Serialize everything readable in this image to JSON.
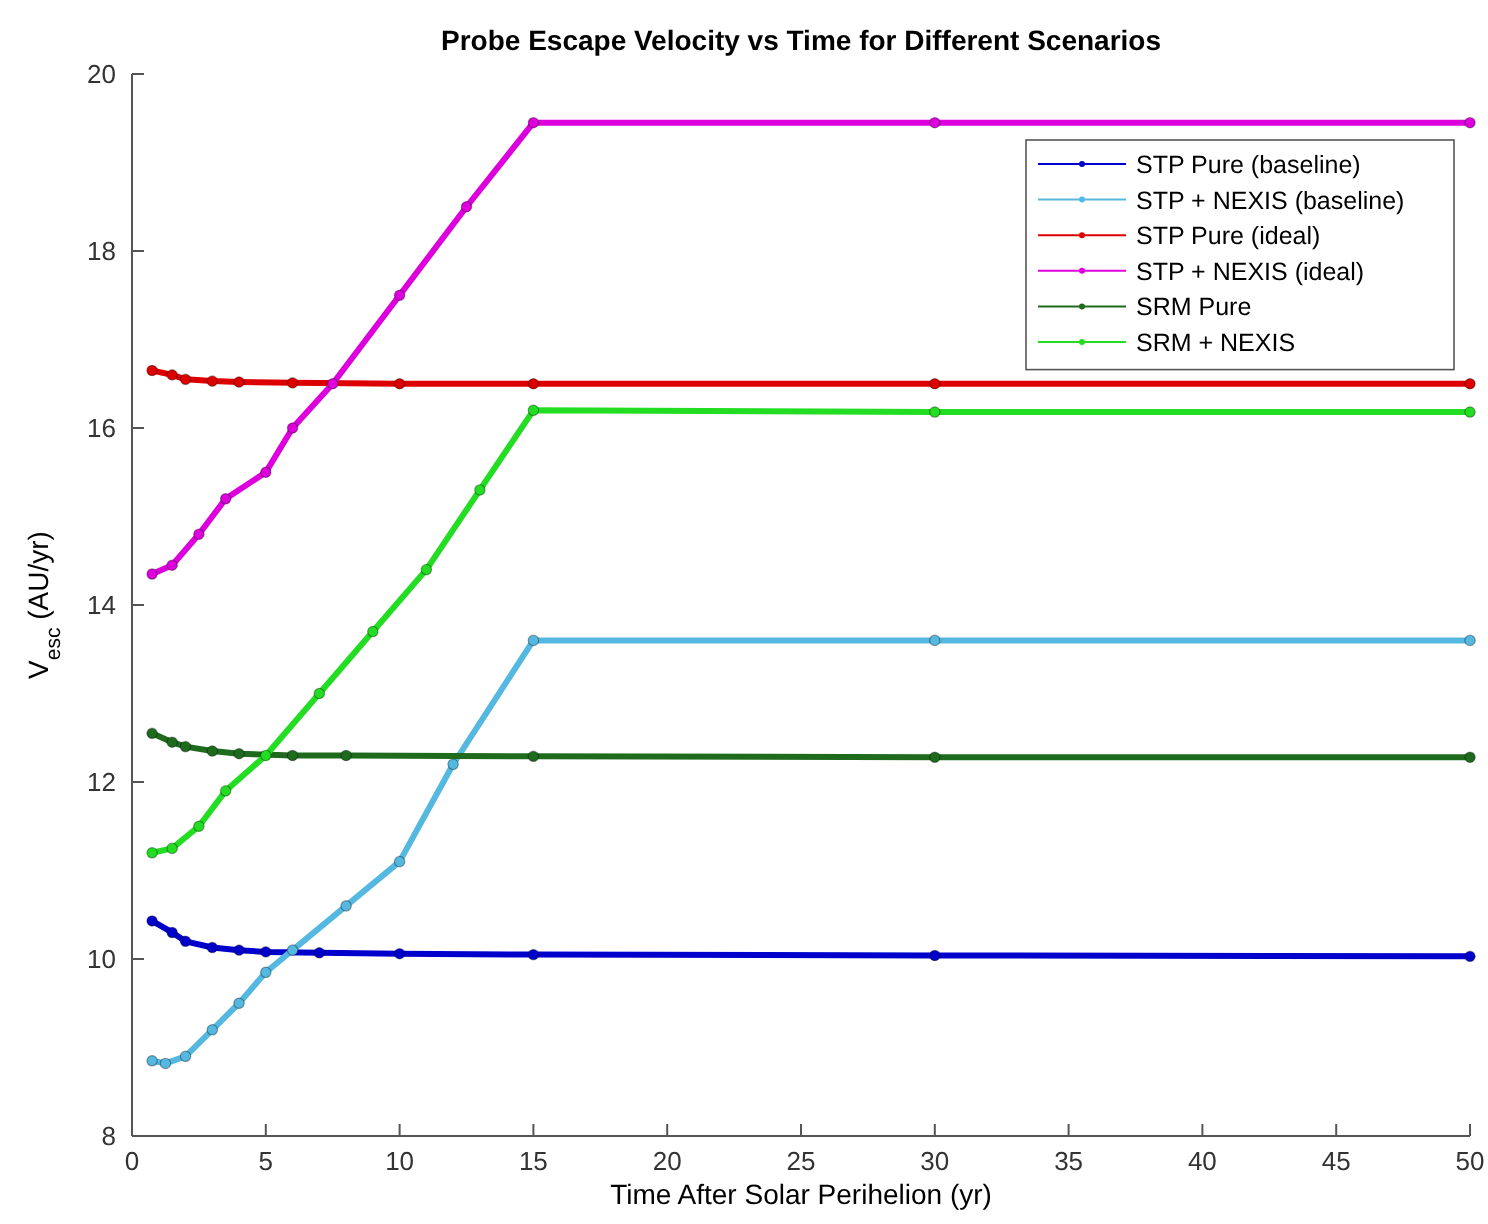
{
  "chart_data": {
    "type": "line",
    "title": "Probe Escape Velocity vs Time for Different Scenarios",
    "xlabel": "Time After Solar Perihelion (yr)",
    "ylabel": "V$_{esc}$ (AU/yr)",
    "xlim": [
      0,
      50
    ],
    "ylim": [
      8,
      20
    ],
    "xticks": [
      0,
      5,
      10,
      15,
      20,
      25,
      30,
      35,
      40,
      45,
      50
    ],
    "yticks": [
      8,
      10,
      12,
      14,
      16,
      18,
      20
    ],
    "legend": "top right",
    "marker": "circle",
    "line_style": "solid",
    "series": [
      {
        "name": "STP Pure (baseline)",
        "color": "#0000cc",
        "x": [
          0.75,
          1.5,
          2,
          3,
          4,
          5,
          7,
          10,
          15,
          30,
          50
        ],
        "values": [
          10.43,
          10.3,
          10.2,
          10.13,
          10.1,
          10.08,
          10.07,
          10.06,
          10.05,
          10.04,
          10.03
        ]
      },
      {
        "name": "STP + NEXIS (baseline)",
        "color": "#55b8e0",
        "x": [
          0.75,
          1.25,
          2,
          3,
          4,
          5,
          6,
          8,
          10,
          12,
          15,
          30,
          50
        ],
        "values": [
          8.85,
          8.82,
          8.9,
          9.2,
          9.5,
          9.85,
          10.1,
          10.6,
          11.1,
          12.2,
          13.6,
          13.6,
          13.6
        ]
      },
      {
        "name": "STP Pure (ideal)",
        "color": "#dd0000",
        "x": [
          0.75,
          1.5,
          2,
          3,
          4,
          6,
          10,
          15,
          30,
          50
        ],
        "values": [
          16.65,
          16.6,
          16.55,
          16.53,
          16.52,
          16.51,
          16.5,
          16.5,
          16.5,
          16.5
        ]
      },
      {
        "name": "STP + NEXIS (ideal)",
        "color": "#dd00dd",
        "x": [
          0.75,
          1.5,
          2.5,
          3.5,
          5,
          6,
          7.5,
          10,
          12.5,
          15,
          30,
          50
        ],
        "values": [
          14.35,
          14.45,
          14.8,
          15.2,
          15.5,
          16.0,
          16.5,
          17.5,
          18.5,
          19.45,
          19.45,
          19.45
        ]
      },
      {
        "name": "SRM Pure",
        "color": "#1e6b1e",
        "x": [
          0.75,
          1.5,
          2,
          3,
          4,
          6,
          8,
          15,
          30,
          50
        ],
        "values": [
          12.55,
          12.45,
          12.4,
          12.35,
          12.32,
          12.3,
          12.3,
          12.29,
          12.28,
          12.28
        ]
      },
      {
        "name": "SRM + NEXIS",
        "color": "#22dd22",
        "x": [
          0.75,
          1.5,
          2.5,
          3.5,
          5,
          7,
          9,
          11,
          13,
          15,
          30,
          50
        ],
        "values": [
          11.2,
          11.25,
          11.5,
          11.9,
          12.3,
          13,
          13.7,
          14.4,
          15.3,
          16.2,
          16.18,
          16.18
        ]
      }
    ]
  }
}
